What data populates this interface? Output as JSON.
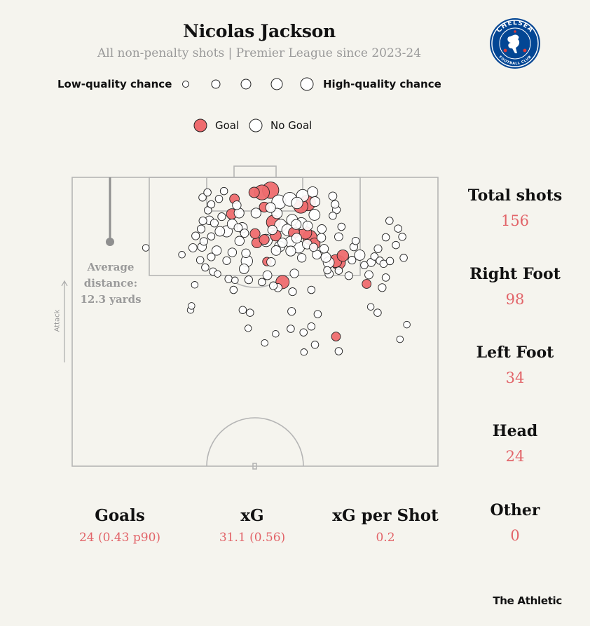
{
  "header": {
    "title": "Nicolas Jackson",
    "subtitle": "All non-penalty shots | Premier League since 2023-24"
  },
  "quality_legend": {
    "low_label": "Low-quality chance",
    "high_label": "High-quality chance"
  },
  "outcome_legend": {
    "goal_label": "Goal",
    "no_goal_label": "No Goal"
  },
  "average_distance": {
    "line1": "Average",
    "line2": "distance:",
    "line3": "12.3 yards"
  },
  "attack_label": "Attack",
  "side_stats": [
    {
      "label": "Total shots",
      "value": "156"
    },
    {
      "label": "Right Foot",
      "value": "98"
    },
    {
      "label": "Left Foot",
      "value": "34"
    },
    {
      "label": "Head",
      "value": "24"
    },
    {
      "label": "Other",
      "value": "0"
    }
  ],
  "bottom_stats": [
    {
      "label": "Goals",
      "value": "24 (0.43 p90)"
    },
    {
      "label": "xG",
      "value": "31.1 (0.56)"
    },
    {
      "label": "xG per Shot",
      "value": "0.2"
    }
  ],
  "crest": {
    "text": "CHELSEA",
    "subtext": "FOOTBALL CLUB"
  },
  "brand": "The Athletic",
  "colors": {
    "goal": "#ee6b6e",
    "no_goal": "#ffffff",
    "accent_text": "#e26469",
    "pitch_line": "#b5b5b5",
    "background": "#f5f4ee",
    "crest_blue": "#034694"
  },
  "chart_data": {
    "type": "scatter",
    "description_units": "x: yards from left touchline (pitch width 80); y: yards from goal line; xg: expected goals per shot",
    "average_distance_yards": 12.3,
    "shots": [
      {
        "x": 43.4,
        "y": 2.8,
        "xg": 0.45,
        "goal": true
      },
      {
        "x": 41.5,
        "y": 3.3,
        "xg": 0.35,
        "goal": true
      },
      {
        "x": 39.8,
        "y": 3.3,
        "xg": 0.12,
        "goal": true
      },
      {
        "x": 35.5,
        "y": 4.7,
        "xg": 0.09,
        "goal": true
      },
      {
        "x": 42.0,
        "y": 6.5,
        "xg": 0.1,
        "goal": true
      },
      {
        "x": 50.0,
        "y": 6.3,
        "xg": 0.3,
        "goal": true
      },
      {
        "x": 51.5,
        "y": 5.6,
        "xg": 0.4,
        "goal": true
      },
      {
        "x": 44.0,
        "y": 9.8,
        "xg": 0.28,
        "goal": true
      },
      {
        "x": 40.0,
        "y": 12.3,
        "xg": 0.1,
        "goal": true
      },
      {
        "x": 42.0,
        "y": 13.6,
        "xg": 0.1,
        "goal": true
      },
      {
        "x": 48.5,
        "y": 12.1,
        "xg": 0.14,
        "goal": true
      },
      {
        "x": 44.5,
        "y": 12.7,
        "xg": 0.14,
        "goal": true
      },
      {
        "x": 51.0,
        "y": 12.1,
        "xg": 0.22,
        "goal": true
      },
      {
        "x": 52.0,
        "y": 13.1,
        "xg": 0.3,
        "goal": true
      },
      {
        "x": 53.0,
        "y": 14.5,
        "xg": 0.15,
        "goal": true
      },
      {
        "x": 40.4,
        "y": 14.3,
        "xg": 0.11,
        "goal": true
      },
      {
        "x": 59.2,
        "y": 17.1,
        "xg": 0.16,
        "goal": true
      },
      {
        "x": 58.2,
        "y": 18.6,
        "xg": 0.3,
        "goal": true
      },
      {
        "x": 57.6,
        "y": 18.3,
        "xg": 0.22,
        "goal": true
      },
      {
        "x": 46.0,
        "y": 22.9,
        "xg": 0.25,
        "goal": true
      },
      {
        "x": 42.6,
        "y": 18.4,
        "xg": 0.06,
        "goal": true
      },
      {
        "x": 64.4,
        "y": 23.3,
        "xg": 0.07,
        "goal": true
      },
      {
        "x": 57.7,
        "y": 34.8,
        "xg": 0.07,
        "goal": true
      },
      {
        "x": 34.9,
        "y": 8.0,
        "xg": 0.12,
        "goal": true
      },
      {
        "x": 36.0,
        "y": 6.1,
        "xg": 0.06,
        "goal": false
      },
      {
        "x": 32.7,
        "y": 8.6,
        "xg": 0.04,
        "goal": false
      },
      {
        "x": 31.1,
        "y": 10.0,
        "xg": 0.04,
        "goal": false
      },
      {
        "x": 32.3,
        "y": 11.8,
        "xg": 0.09,
        "goal": false
      },
      {
        "x": 33.8,
        "y": 11.8,
        "xg": 0.15,
        "goal": false
      },
      {
        "x": 36.5,
        "y": 7.8,
        "xg": 0.1,
        "goal": false
      },
      {
        "x": 40.2,
        "y": 7.8,
        "xg": 0.1,
        "goal": false
      },
      {
        "x": 43.4,
        "y": 6.6,
        "xg": 0.1,
        "goal": false
      },
      {
        "x": 45.2,
        "y": 5.4,
        "xg": 0.3,
        "goal": false
      },
      {
        "x": 47.6,
        "y": 4.8,
        "xg": 0.28,
        "goal": false
      },
      {
        "x": 49.2,
        "y": 5.6,
        "xg": 0.16,
        "goal": false
      },
      {
        "x": 50.4,
        "y": 4.0,
        "xg": 0.2,
        "goal": false
      },
      {
        "x": 52.6,
        "y": 3.2,
        "xg": 0.12,
        "goal": false
      },
      {
        "x": 53.1,
        "y": 5.3,
        "xg": 0.1,
        "goal": false
      },
      {
        "x": 53.0,
        "y": 8.2,
        "xg": 0.14,
        "goal": false
      },
      {
        "x": 44.8,
        "y": 7.9,
        "xg": 0.12,
        "goal": false
      },
      {
        "x": 45.6,
        "y": 10.5,
        "xg": 0.2,
        "goal": false
      },
      {
        "x": 43.8,
        "y": 11.5,
        "xg": 0.08,
        "goal": false
      },
      {
        "x": 47.1,
        "y": 11.5,
        "xg": 0.16,
        "goal": false
      },
      {
        "x": 48.1,
        "y": 9.3,
        "xg": 0.14,
        "goal": false
      },
      {
        "x": 49.0,
        "y": 10.3,
        "xg": 0.1,
        "goal": false
      },
      {
        "x": 50.1,
        "y": 10.1,
        "xg": 0.18,
        "goal": false
      },
      {
        "x": 51.5,
        "y": 10.6,
        "xg": 0.09,
        "goal": false
      },
      {
        "x": 47.8,
        "y": 14.1,
        "xg": 0.14,
        "goal": false
      },
      {
        "x": 49.1,
        "y": 13.3,
        "xg": 0.1,
        "goal": false
      },
      {
        "x": 46.0,
        "y": 14.3,
        "xg": 0.08,
        "goal": false
      },
      {
        "x": 42.4,
        "y": 13.8,
        "xg": 0.2,
        "goal": false
      },
      {
        "x": 44.6,
        "y": 16.0,
        "xg": 0.09,
        "goal": false
      },
      {
        "x": 45.4,
        "y": 15.1,
        "xg": 0.12,
        "goal": false
      },
      {
        "x": 47.8,
        "y": 16.1,
        "xg": 0.1,
        "goal": false
      },
      {
        "x": 49.5,
        "y": 15.2,
        "xg": 0.2,
        "goal": false
      },
      {
        "x": 51.4,
        "y": 14.6,
        "xg": 0.09,
        "goal": false
      },
      {
        "x": 54.6,
        "y": 11.3,
        "xg": 0.06,
        "goal": false
      },
      {
        "x": 54.5,
        "y": 13.2,
        "xg": 0.06,
        "goal": false
      },
      {
        "x": 55.1,
        "y": 15.6,
        "xg": 0.06,
        "goal": false
      },
      {
        "x": 55.5,
        "y": 17.5,
        "xg": 0.1,
        "goal": false
      },
      {
        "x": 56.1,
        "y": 18.6,
        "xg": 0.14,
        "goal": false
      },
      {
        "x": 53.5,
        "y": 16.9,
        "xg": 0.07,
        "goal": false
      },
      {
        "x": 56.2,
        "y": 21.1,
        "xg": 0.05,
        "goal": false
      },
      {
        "x": 48.6,
        "y": 21.0,
        "xg": 0.06,
        "goal": false
      },
      {
        "x": 50.2,
        "y": 17.6,
        "xg": 0.06,
        "goal": false
      },
      {
        "x": 43.5,
        "y": 18.5,
        "xg": 0.06,
        "goal": false
      },
      {
        "x": 42.7,
        "y": 21.4,
        "xg": 0.07,
        "goal": false
      },
      {
        "x": 38.0,
        "y": 16.6,
        "xg": 0.06,
        "goal": false
      },
      {
        "x": 38.2,
        "y": 18.3,
        "xg": 0.16,
        "goal": false
      },
      {
        "x": 35.0,
        "y": 16.4,
        "xg": 0.06,
        "goal": false
      },
      {
        "x": 33.8,
        "y": 18.2,
        "xg": 0.04,
        "goal": false
      },
      {
        "x": 36.6,
        "y": 13.9,
        "xg": 0.08,
        "goal": false
      },
      {
        "x": 37.7,
        "y": 12.2,
        "xg": 0.05,
        "goal": false
      },
      {
        "x": 37.2,
        "y": 11.0,
        "xg": 0.11,
        "goal": false
      },
      {
        "x": 36.3,
        "y": 11.0,
        "xg": 0.05,
        "goal": false
      },
      {
        "x": 35.0,
        "y": 10.2,
        "xg": 0.1,
        "goal": false
      },
      {
        "x": 30.4,
        "y": 12.9,
        "xg": 0.03,
        "goal": false
      },
      {
        "x": 28.4,
        "y": 15.2,
        "xg": 0.06,
        "goal": false
      },
      {
        "x": 27.0,
        "y": 12.8,
        "xg": 0.04,
        "goal": false
      },
      {
        "x": 26.4,
        "y": 15.4,
        "xg": 0.05,
        "goal": false
      },
      {
        "x": 28.8,
        "y": 14.0,
        "xg": 0.04,
        "goal": false
      },
      {
        "x": 28.2,
        "y": 11.3,
        "xg": 0.04,
        "goal": false
      },
      {
        "x": 30.0,
        "y": 9.4,
        "xg": 0.06,
        "goal": false
      },
      {
        "x": 28.6,
        "y": 9.5,
        "xg": 0.04,
        "goal": false
      },
      {
        "x": 29.7,
        "y": 7.2,
        "xg": 0.03,
        "goal": false
      },
      {
        "x": 30.4,
        "y": 5.9,
        "xg": 0.03,
        "goal": false
      },
      {
        "x": 28.5,
        "y": 4.4,
        "xg": 0.03,
        "goal": false
      },
      {
        "x": 32.1,
        "y": 4.7,
        "xg": 0.03,
        "goal": false
      },
      {
        "x": 29.6,
        "y": 3.3,
        "xg": 0.03,
        "goal": false
      },
      {
        "x": 33.2,
        "y": 3.0,
        "xg": 0.03,
        "goal": false
      },
      {
        "x": 31.6,
        "y": 16.0,
        "xg": 0.08,
        "goal": false
      },
      {
        "x": 30.4,
        "y": 17.4,
        "xg": 0.04,
        "goal": false
      },
      {
        "x": 28.0,
        "y": 18.1,
        "xg": 0.03,
        "goal": false
      },
      {
        "x": 29.1,
        "y": 19.7,
        "xg": 0.03,
        "goal": false
      },
      {
        "x": 30.8,
        "y": 20.6,
        "xg": 0.03,
        "goal": false
      },
      {
        "x": 34.2,
        "y": 22.2,
        "xg": 0.03,
        "goal": false
      },
      {
        "x": 35.3,
        "y": 24.6,
        "xg": 0.03,
        "goal": false
      },
      {
        "x": 37.6,
        "y": 20.0,
        "xg": 0.09,
        "goal": false
      },
      {
        "x": 38.6,
        "y": 22.4,
        "xg": 0.04,
        "goal": false
      },
      {
        "x": 41.5,
        "y": 22.9,
        "xg": 0.03,
        "goal": false
      },
      {
        "x": 44.0,
        "y": 23.7,
        "xg": 0.04,
        "goal": false
      },
      {
        "x": 45.0,
        "y": 24.1,
        "xg": 0.05,
        "goal": false
      },
      {
        "x": 48.2,
        "y": 25.0,
        "xg": 0.04,
        "goal": false
      },
      {
        "x": 52.3,
        "y": 24.6,
        "xg": 0.03,
        "goal": false
      },
      {
        "x": 48.0,
        "y": 29.3,
        "xg": 0.04,
        "goal": false
      },
      {
        "x": 47.8,
        "y": 33.1,
        "xg": 0.03,
        "goal": false
      },
      {
        "x": 50.6,
        "y": 33.9,
        "xg": 0.03,
        "goal": false
      },
      {
        "x": 53.7,
        "y": 29.9,
        "xg": 0.03,
        "goal": false
      },
      {
        "x": 53.1,
        "y": 36.6,
        "xg": 0.03,
        "goal": false
      },
      {
        "x": 58.3,
        "y": 38.0,
        "xg": 0.03,
        "goal": false
      },
      {
        "x": 44.5,
        "y": 34.2,
        "xg": 0.02,
        "goal": false
      },
      {
        "x": 37.3,
        "y": 29.0,
        "xg": 0.03,
        "goal": false
      },
      {
        "x": 38.9,
        "y": 29.6,
        "xg": 0.03,
        "goal": false
      },
      {
        "x": 38.5,
        "y": 33.0,
        "xg": 0.02,
        "goal": false
      },
      {
        "x": 42.1,
        "y": 36.2,
        "xg": 0.02,
        "goal": false
      },
      {
        "x": 50.7,
        "y": 38.2,
        "xg": 0.02,
        "goal": false
      },
      {
        "x": 52.3,
        "y": 32.6,
        "xg": 0.03,
        "goal": false
      },
      {
        "x": 25.9,
        "y": 29.0,
        "xg": 0.02,
        "goal": false
      },
      {
        "x": 26.1,
        "y": 28.1,
        "xg": 0.02,
        "goal": false
      },
      {
        "x": 26.8,
        "y": 23.5,
        "xg": 0.02,
        "goal": false
      },
      {
        "x": 24.0,
        "y": 16.9,
        "xg": 0.02,
        "goal": false
      },
      {
        "x": 16.1,
        "y": 15.4,
        "xg": 0.02,
        "goal": false
      },
      {
        "x": 55.8,
        "y": 20.3,
        "xg": 0.03,
        "goal": false
      },
      {
        "x": 58.3,
        "y": 20.4,
        "xg": 0.03,
        "goal": false
      },
      {
        "x": 60.5,
        "y": 21.5,
        "xg": 0.04,
        "goal": false
      },
      {
        "x": 61.2,
        "y": 18.1,
        "xg": 0.04,
        "goal": false
      },
      {
        "x": 61.6,
        "y": 15.2,
        "xg": 0.04,
        "goal": false
      },
      {
        "x": 62.0,
        "y": 13.9,
        "xg": 0.03,
        "goal": false
      },
      {
        "x": 62.9,
        "y": 17.0,
        "xg": 0.12,
        "goal": false
      },
      {
        "x": 63.9,
        "y": 19.2,
        "xg": 0.03,
        "goal": false
      },
      {
        "x": 64.9,
        "y": 21.3,
        "xg": 0.05,
        "goal": false
      },
      {
        "x": 65.4,
        "y": 18.6,
        "xg": 0.05,
        "goal": false
      },
      {
        "x": 66.1,
        "y": 17.3,
        "xg": 0.03,
        "goal": false
      },
      {
        "x": 66.9,
        "y": 15.6,
        "xg": 0.04,
        "goal": false
      },
      {
        "x": 67.3,
        "y": 18.2,
        "xg": 0.03,
        "goal": false
      },
      {
        "x": 68.1,
        "y": 18.9,
        "xg": 0.03,
        "goal": false
      },
      {
        "x": 69.5,
        "y": 18.3,
        "xg": 0.03,
        "goal": false
      },
      {
        "x": 68.6,
        "y": 21.9,
        "xg": 0.03,
        "goal": false
      },
      {
        "x": 67.8,
        "y": 24.1,
        "xg": 0.04,
        "goal": false
      },
      {
        "x": 68.6,
        "y": 13.1,
        "xg": 0.03,
        "goal": false
      },
      {
        "x": 71.3,
        "y": 11.2,
        "xg": 0.03,
        "goal": false
      },
      {
        "x": 72.2,
        "y": 13.0,
        "xg": 0.03,
        "goal": false
      },
      {
        "x": 69.4,
        "y": 9.5,
        "xg": 0.03,
        "goal": false
      },
      {
        "x": 70.8,
        "y": 14.8,
        "xg": 0.03,
        "goal": false
      },
      {
        "x": 72.5,
        "y": 17.6,
        "xg": 0.03,
        "goal": false
      },
      {
        "x": 66.8,
        "y": 29.6,
        "xg": 0.03,
        "goal": false
      },
      {
        "x": 73.2,
        "y": 32.2,
        "xg": 0.02,
        "goal": false
      },
      {
        "x": 71.7,
        "y": 35.4,
        "xg": 0.02,
        "goal": false
      },
      {
        "x": 65.3,
        "y": 28.3,
        "xg": 0.02,
        "goal": false
      },
      {
        "x": 52.8,
        "y": 15.3,
        "xg": 0.05,
        "goal": false
      },
      {
        "x": 35.6,
        "y": 22.5,
        "xg": 0.02,
        "goal": false
      },
      {
        "x": 31.8,
        "y": 21.1,
        "xg": 0.02,
        "goal": false
      },
      {
        "x": 58.9,
        "y": 10.8,
        "xg": 0.03,
        "goal": false
      },
      {
        "x": 58.3,
        "y": 13.0,
        "xg": 0.05,
        "goal": false
      },
      {
        "x": 57.0,
        "y": 8.4,
        "xg": 0.03,
        "goal": false
      },
      {
        "x": 57.8,
        "y": 7.1,
        "xg": 0.04,
        "goal": false
      },
      {
        "x": 57.5,
        "y": 5.9,
        "xg": 0.04,
        "goal": false
      },
      {
        "x": 57.0,
        "y": 4.1,
        "xg": 0.05,
        "goal": false
      }
    ]
  }
}
